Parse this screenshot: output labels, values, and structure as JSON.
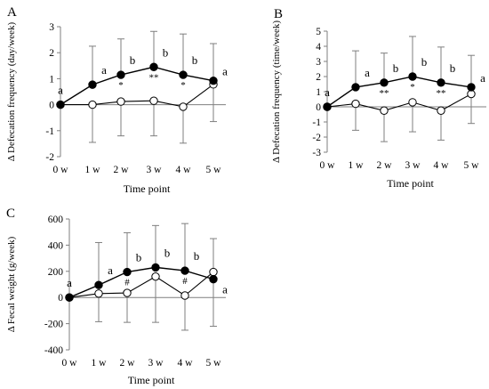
{
  "chart_data": [
    {
      "type": "line",
      "panel_label": "A",
      "xlabel": "Time point",
      "ylabel": "Δ Defecation frequency (day/week)",
      "categories": [
        "0 w",
        "1 w",
        "2 w",
        "3 w",
        "4 w",
        "5 w"
      ],
      "ylim": [
        -2,
        3
      ],
      "yticks": [
        -2,
        -1,
        0,
        1,
        2,
        3
      ],
      "grid": false,
      "series": [
        {
          "marker": "filled",
          "color": "#000000",
          "values": [
            0,
            0.77,
            1.15,
            1.45,
            1.15,
            0.92
          ],
          "error_upper": [
            null,
            1.48,
            1.38,
            1.37,
            1.57,
            1.43
          ],
          "point_labels": [
            "a",
            "a",
            "b",
            "b",
            "b",
            "a"
          ]
        },
        {
          "marker": "open",
          "color": "#000000",
          "values": [
            0,
            0,
            0.12,
            0.15,
            -0.08,
            0.78
          ],
          "error_lower": [
            null,
            1.45,
            1.32,
            1.35,
            1.4,
            1.43
          ]
        }
      ],
      "significance": [
        "",
        "",
        "*",
        "**",
        "*",
        ""
      ]
    },
    {
      "type": "line",
      "panel_label": "B",
      "xlabel": "Time point",
      "ylabel": "Δ Defecation frequency (time/week)",
      "categories": [
        "0 w",
        "1 w",
        "2 w",
        "3 w",
        "4 w",
        "5 w"
      ],
      "ylim": [
        -3,
        5
      ],
      "yticks": [
        -3,
        -2,
        -1,
        0,
        1,
        2,
        3,
        4,
        5
      ],
      "grid": false,
      "series": [
        {
          "marker": "filled",
          "color": "#000000",
          "values": [
            0,
            1.3,
            1.6,
            2.0,
            1.6,
            1.3
          ],
          "error_upper": [
            null,
            2.4,
            1.95,
            2.65,
            2.35,
            2.1
          ],
          "point_labels": [
            "a",
            "a",
            "b",
            "b",
            "b",
            "a"
          ]
        },
        {
          "marker": "open",
          "color": "#000000",
          "values": [
            0,
            0.2,
            -0.25,
            0.3,
            -0.25,
            0.85
          ],
          "error_lower": [
            null,
            1.75,
            2.05,
            1.95,
            1.95,
            1.95
          ]
        }
      ],
      "significance": [
        "",
        "",
        "**",
        "*",
        "**",
        ""
      ]
    },
    {
      "type": "line",
      "panel_label": "C",
      "xlabel": "Time point",
      "ylabel": "Δ Fecal weight (g/week)",
      "categories": [
        "0 w",
        "1 w",
        "2 w",
        "3 w",
        "4 w",
        "5 w"
      ],
      "ylim": [
        -400,
        600
      ],
      "yticks": [
        -400,
        -200,
        0,
        200,
        400,
        600
      ],
      "grid": false,
      "series": [
        {
          "marker": "filled",
          "color": "#000000",
          "values": [
            0,
            95,
            195,
            230,
            205,
            140
          ],
          "error_upper": [
            null,
            325,
            300,
            320,
            360,
            310
          ],
          "point_labels": [
            "a",
            "a",
            "b",
            "b",
            "b",
            "a"
          ]
        },
        {
          "marker": "open",
          "color": "#000000",
          "values": [
            0,
            30,
            35,
            160,
            15,
            195
          ],
          "error_lower": [
            null,
            215,
            225,
            350,
            265,
            415
          ]
        }
      ],
      "significance": [
        "",
        "",
        "#",
        "",
        "#",
        ""
      ]
    }
  ]
}
